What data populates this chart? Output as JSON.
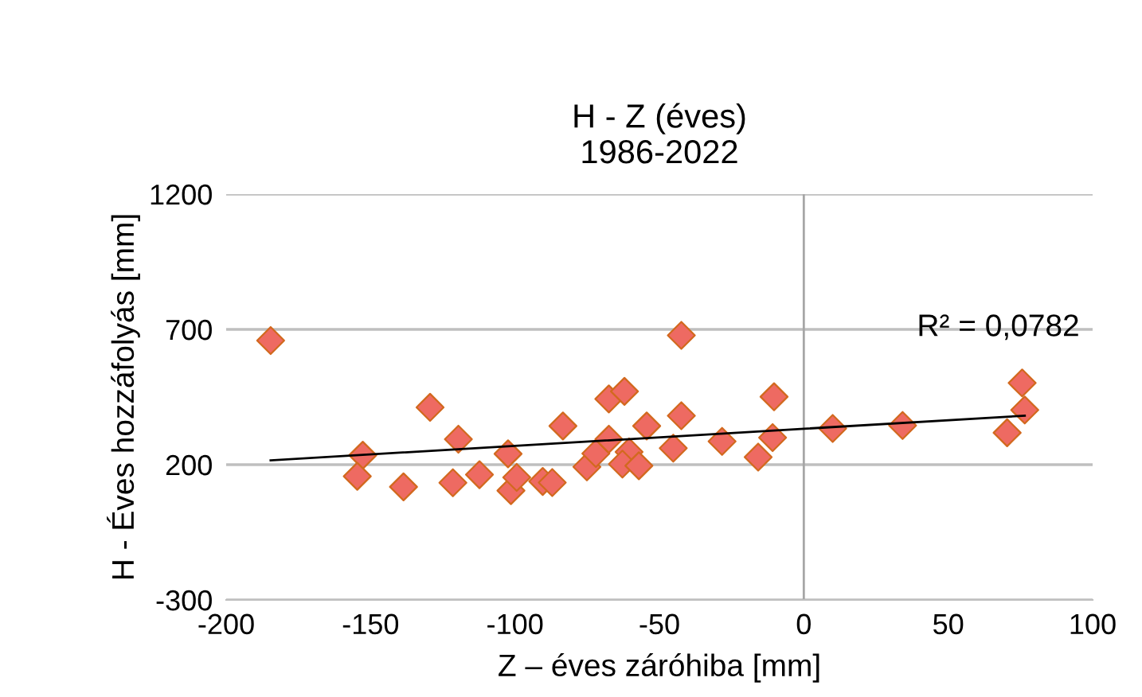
{
  "chart_data": {
    "type": "scatter",
    "title": "H - Z (éves)\n1986-2022",
    "xlabel": "Z – éves záróhiba [mm]",
    "ylabel": "H - Éves hozzáfolyás [mm]",
    "series": [
      {
        "color": "#ee6a62",
        "marker": "diamond",
        "x": [
          -184.6,
          -152.7,
          -154.6,
          -138.6,
          -129.4,
          -121.5,
          -119.6,
          -112.3,
          -102.4,
          -101.4,
          -99.4,
          -90.4,
          -87.1,
          -83.4,
          -75.1,
          -72.0,
          -67.5,
          -67.5,
          -62.1,
          -60.5,
          -62.8,
          -57.1,
          -54.4,
          -45.2,
          -42.4,
          -42.4,
          -28.3,
          -15.8,
          -10.8,
          -10.3,
          10.0,
          34.2,
          70.4,
          75.6,
          76.5
        ],
        "values": [
          659,
          235,
          157,
          118,
          412,
          133,
          294,
          163,
          240,
          104,
          153,
          138,
          134,
          343,
          192,
          241,
          443,
          294,
          471,
          247,
          202,
          196,
          343,
          261,
          678,
          381,
          286,
          228,
          300,
          451,
          334,
          345,
          318,
          502,
          402
        ]
      },
      {
        "type": "line",
        "color": "#000000",
        "marker": "none",
        "line_style": "solid",
        "x": [
          -184.6,
          76.5
        ],
        "values": [
          216,
          381
        ]
      }
    ],
    "annotations": [
      "R² = 0,0782"
    ],
    "ref_lines": [
      {
        "axis": "x",
        "value": 0,
        "label": null,
        "color": "#a6a6a6"
      }
    ],
    "xlim": [
      -200,
      100
    ],
    "xticks": [
      -200,
      -150,
      -100,
      -50,
      0,
      50,
      100
    ],
    "ylim": [
      -300,
      1200
    ],
    "yticks": [
      -300,
      200,
      700,
      1200
    ],
    "grid": "y",
    "legend": false
  }
}
